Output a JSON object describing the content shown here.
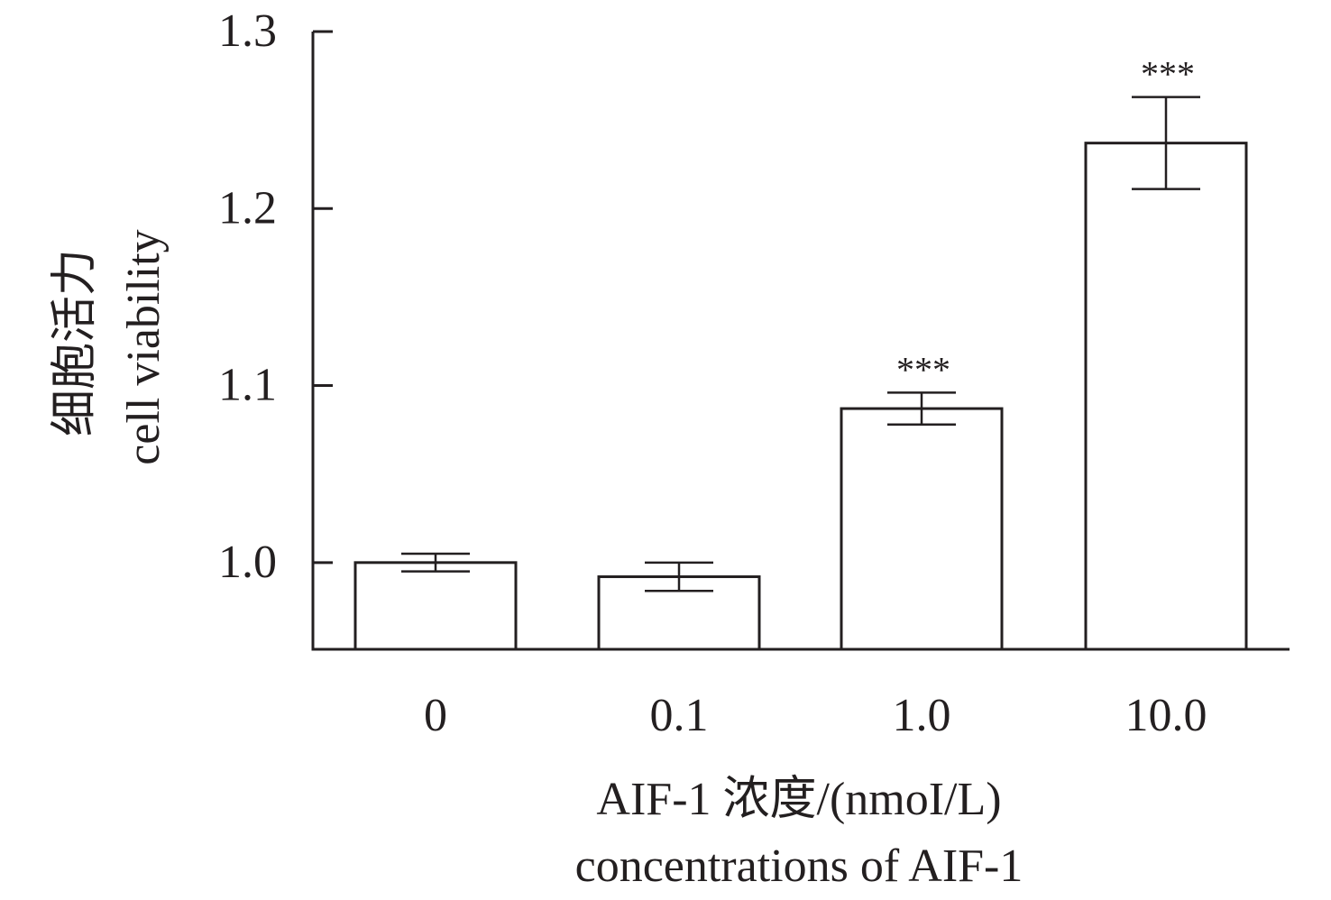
{
  "chart_data": {
    "type": "bar",
    "categories": [
      "0",
      "0.1",
      "1.0",
      "10.0"
    ],
    "values": [
      1.0,
      0.992,
      1.087,
      1.237
    ],
    "errors": [
      0.005,
      0.008,
      0.009,
      0.026
    ],
    "significance": [
      "",
      "",
      "***",
      "***"
    ],
    "title": "",
    "xlabel": [
      "AIF-1 浓度/(nmoI/L)",
      "concentrations of AIF-1"
    ],
    "ylabel": [
      "细胞活力",
      "cell viability"
    ],
    "ylim": [
      0.951,
      1.3
    ],
    "yticks": [
      "1.0",
      "1.1",
      "1.2",
      "1.3"
    ],
    "grid": false,
    "legend": "none",
    "colors": {
      "bar_fill": "#ffffff",
      "stroke": "#231f20"
    }
  }
}
